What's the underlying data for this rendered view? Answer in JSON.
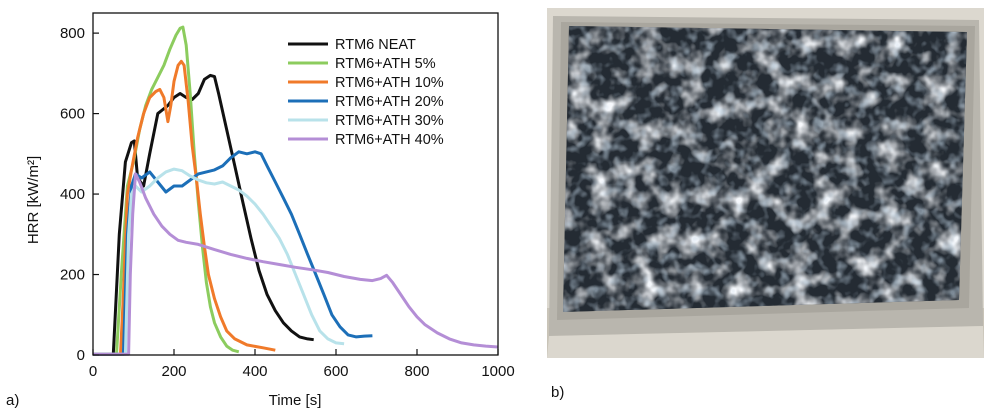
{
  "chart_data": {
    "type": "line",
    "xlabel": "Time [s]",
    "ylabel": "HRR [kW/m²]",
    "xlim": [
      0,
      1000
    ],
    "ylim": [
      0,
      850
    ],
    "xticks": [
      0,
      200,
      400,
      600,
      800,
      1000
    ],
    "yticks": [
      0,
      200,
      400,
      600,
      800
    ],
    "grid": false,
    "legend_position": "top-right",
    "series": [
      {
        "name": "RTM6 NEAT",
        "color": "#111111",
        "points": [
          [
            0,
            2
          ],
          [
            50,
            2
          ],
          [
            65,
            300
          ],
          [
            80,
            480
          ],
          [
            95,
            528
          ],
          [
            102,
            532
          ],
          [
            110,
            440
          ],
          [
            125,
            420
          ],
          [
            140,
            500
          ],
          [
            160,
            600
          ],
          [
            185,
            620
          ],
          [
            200,
            640
          ],
          [
            215,
            650
          ],
          [
            230,
            640
          ],
          [
            245,
            635
          ],
          [
            260,
            650
          ],
          [
            275,
            685
          ],
          [
            290,
            695
          ],
          [
            300,
            692
          ],
          [
            310,
            650
          ],
          [
            330,
            560
          ],
          [
            350,
            470
          ],
          [
            370,
            380
          ],
          [
            390,
            290
          ],
          [
            410,
            210
          ],
          [
            430,
            150
          ],
          [
            450,
            110
          ],
          [
            470,
            80
          ],
          [
            490,
            60
          ],
          [
            510,
            45
          ],
          [
            530,
            40
          ],
          [
            545,
            38
          ]
        ]
      },
      {
        "name": "RTM6+ATH 5%",
        "color": "#8ccc5e",
        "points": [
          [
            0,
            2
          ],
          [
            58,
            2
          ],
          [
            70,
            200
          ],
          [
            85,
            420
          ],
          [
            100,
            480
          ],
          [
            115,
            560
          ],
          [
            130,
            620
          ],
          [
            145,
            660
          ],
          [
            160,
            690
          ],
          [
            175,
            720
          ],
          [
            190,
            760
          ],
          [
            205,
            795
          ],
          [
            215,
            812
          ],
          [
            222,
            815
          ],
          [
            230,
            770
          ],
          [
            240,
            650
          ],
          [
            250,
            500
          ],
          [
            260,
            380
          ],
          [
            270,
            270
          ],
          [
            280,
            180
          ],
          [
            290,
            120
          ],
          [
            300,
            80
          ],
          [
            315,
            45
          ],
          [
            330,
            22
          ],
          [
            345,
            12
          ],
          [
            360,
            8
          ]
        ]
      },
      {
        "name": "RTM6+ATH 10%",
        "color": "#f07a2a",
        "points": [
          [
            0,
            2
          ],
          [
            68,
            2
          ],
          [
            75,
            150
          ],
          [
            85,
            400
          ],
          [
            95,
            460
          ],
          [
            110,
            540
          ],
          [
            125,
            600
          ],
          [
            140,
            640
          ],
          [
            155,
            655
          ],
          [
            165,
            660
          ],
          [
            175,
            640
          ],
          [
            185,
            580
          ],
          [
            192,
            620
          ],
          [
            200,
            680
          ],
          [
            210,
            720
          ],
          [
            218,
            730
          ],
          [
            225,
            720
          ],
          [
            235,
            630
          ],
          [
            245,
            520
          ],
          [
            255,
            440
          ],
          [
            265,
            350
          ],
          [
            275,
            270
          ],
          [
            285,
            200
          ],
          [
            300,
            140
          ],
          [
            315,
            95
          ],
          [
            330,
            60
          ],
          [
            350,
            40
          ],
          [
            380,
            25
          ],
          [
            420,
            18
          ],
          [
            450,
            12
          ]
        ]
      },
      {
        "name": "RTM6+ATH 20%",
        "color": "#1c6fb8",
        "points": [
          [
            0,
            2
          ],
          [
            75,
            2
          ],
          [
            85,
            300
          ],
          [
            95,
            420
          ],
          [
            105,
            450
          ],
          [
            120,
            440
          ],
          [
            140,
            455
          ],
          [
            160,
            430
          ],
          [
            180,
            405
          ],
          [
            200,
            420
          ],
          [
            220,
            420
          ],
          [
            240,
            435
          ],
          [
            260,
            450
          ],
          [
            280,
            455
          ],
          [
            300,
            460
          ],
          [
            320,
            470
          ],
          [
            340,
            490
          ],
          [
            360,
            505
          ],
          [
            380,
            500
          ],
          [
            400,
            505
          ],
          [
            415,
            500
          ],
          [
            430,
            470
          ],
          [
            450,
            430
          ],
          [
            470,
            390
          ],
          [
            490,
            350
          ],
          [
            510,
            300
          ],
          [
            530,
            250
          ],
          [
            550,
            200
          ],
          [
            570,
            150
          ],
          [
            590,
            100
          ],
          [
            610,
            70
          ],
          [
            630,
            50
          ],
          [
            650,
            45
          ],
          [
            670,
            47
          ],
          [
            690,
            48
          ]
        ]
      },
      {
        "name": "RTM6+ATH 30%",
        "color": "#b8e2ea",
        "points": [
          [
            0,
            2
          ],
          [
            80,
            2
          ],
          [
            88,
            300
          ],
          [
            95,
            400
          ],
          [
            105,
            420
          ],
          [
            120,
            405
          ],
          [
            140,
            420
          ],
          [
            160,
            440
          ],
          [
            180,
            455
          ],
          [
            200,
            462
          ],
          [
            220,
            458
          ],
          [
            240,
            445
          ],
          [
            260,
            435
          ],
          [
            280,
            428
          ],
          [
            300,
            425
          ],
          [
            320,
            430
          ],
          [
            340,
            420
          ],
          [
            360,
            410
          ],
          [
            380,
            395
          ],
          [
            400,
            375
          ],
          [
            420,
            350
          ],
          [
            440,
            320
          ],
          [
            460,
            290
          ],
          [
            480,
            250
          ],
          [
            500,
            200
          ],
          [
            520,
            150
          ],
          [
            540,
            100
          ],
          [
            560,
            60
          ],
          [
            580,
            40
          ],
          [
            600,
            30
          ],
          [
            620,
            28
          ]
        ]
      },
      {
        "name": "RTM6+ATH 40%",
        "color": "#b48ed6",
        "points": [
          [
            0,
            2
          ],
          [
            88,
            2
          ],
          [
            92,
            200
          ],
          [
            98,
            350
          ],
          [
            105,
            450
          ],
          [
            115,
            430
          ],
          [
            130,
            390
          ],
          [
            150,
            350
          ],
          [
            170,
            320
          ],
          [
            190,
            300
          ],
          [
            210,
            285
          ],
          [
            230,
            280
          ],
          [
            260,
            275
          ],
          [
            300,
            262
          ],
          [
            340,
            250
          ],
          [
            380,
            240
          ],
          [
            420,
            232
          ],
          [
            460,
            225
          ],
          [
            500,
            218
          ],
          [
            540,
            212
          ],
          [
            580,
            205
          ],
          [
            620,
            195
          ],
          [
            660,
            188
          ],
          [
            690,
            185
          ],
          [
            710,
            190
          ],
          [
            725,
            198
          ],
          [
            740,
            180
          ],
          [
            760,
            150
          ],
          [
            780,
            120
          ],
          [
            800,
            95
          ],
          [
            820,
            75
          ],
          [
            850,
            55
          ],
          [
            880,
            40
          ],
          [
            910,
            30
          ],
          [
            940,
            25
          ],
          [
            970,
            22
          ],
          [
            1000,
            20
          ]
        ]
      }
    ]
  },
  "labels": {
    "panel_a": "a)",
    "panel_b": "b)"
  },
  "photo": {
    "alt": "burnt composite plate photo"
  }
}
